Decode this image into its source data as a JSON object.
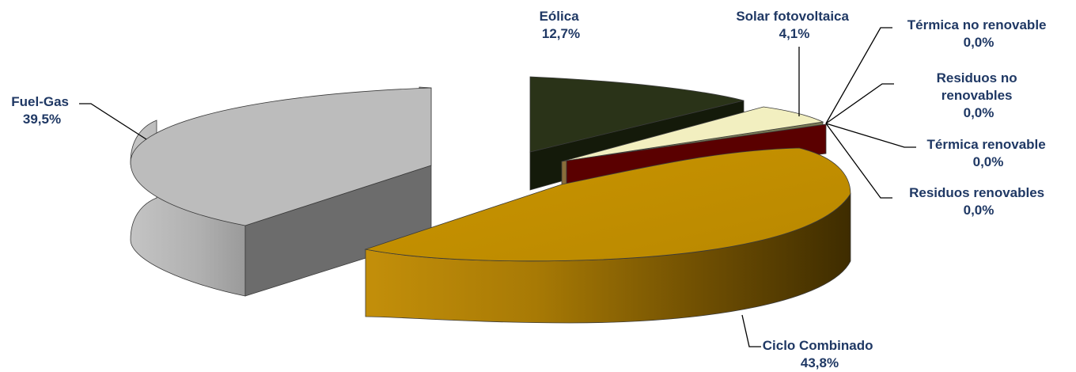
{
  "chart_data": {
    "type": "pie",
    "style": "3d-exploded",
    "slices": [
      {
        "name": "Eólica",
        "percent_label": "12,7%",
        "value": 12.7,
        "color": "#2a3318"
      },
      {
        "name": "Solar fotovoltaica",
        "percent_label": "4,1%",
        "value": 4.1,
        "color": "#f2efc0"
      },
      {
        "name": "Térmica no renovable",
        "percent_label": "0,0%",
        "value": 0.0,
        "color": "#5a0000"
      },
      {
        "name": "Residuos no renovables",
        "percent_label": "0,0%",
        "value": 0.0,
        "color": "#5a0000"
      },
      {
        "name": "Térmica renovable",
        "percent_label": "0,0%",
        "value": 0.0,
        "color": "#5a0000"
      },
      {
        "name": "Residuos renovables",
        "percent_label": "0,0%",
        "value": 0.0,
        "color": "#5a0000"
      },
      {
        "name": "Ciclo Combinado",
        "percent_label": "43,8%",
        "value": 43.8,
        "color": "#bf8c00"
      },
      {
        "name": "Fuel-Gas",
        "percent_label": "39,5%",
        "value": 39.5,
        "color": "#bdbdbd"
      }
    ],
    "label_lines": {
      "eolica": [
        "Eólica",
        "12,7%"
      ],
      "solar": [
        "Solar fotovoltaica",
        "4,1%"
      ],
      "termica_no_renovable": [
        "Térmica no renovable",
        "0,0%"
      ],
      "residuos_no_renovables": [
        "Residuos no",
        "renovables",
        "0,0%"
      ],
      "termica_renovable": [
        "Térmica renovable",
        "0,0%"
      ],
      "residuos_renovables": [
        "Residuos renovables",
        "0,0%"
      ],
      "ciclo_combinado": [
        "Ciclo Combinado",
        "43,8%"
      ],
      "fuel_gas": [
        "Fuel-Gas",
        "39,5%"
      ]
    },
    "legend": "none",
    "label_color": "#1f3864"
  }
}
